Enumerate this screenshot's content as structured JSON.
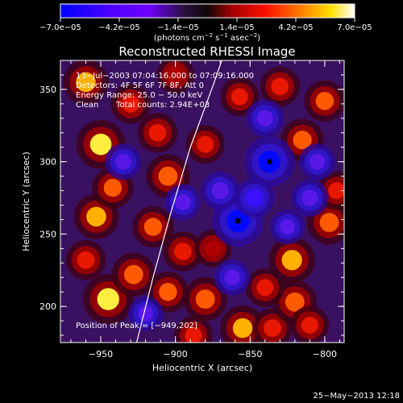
{
  "chart_data": {
    "type": "heatmap",
    "title": "Reconstructed RHESSI Image",
    "xlabel": "Heliocentric X (arcsec)",
    "ylabel": "Heliocentric Y (arcsec)",
    "xlim": [
      -977,
      -787
    ],
    "ylim": [
      175,
      370
    ],
    "x_ticks": [
      -950,
      -900,
      -850,
      -800
    ],
    "y_ticks": [
      200,
      250,
      300,
      350
    ],
    "x_tick_labels": [
      "−950",
      "−900",
      "−850",
      "−800"
    ],
    "y_tick_labels": [
      "200",
      "250",
      "300",
      "350"
    ],
    "colorbar": {
      "range": [
        -7e-05,
        7e-05
      ],
      "tick_values": [
        -7e-05,
        -4.2e-05,
        -1.4e-05,
        1.4e-05,
        4.2e-05,
        7e-05
      ],
      "tick_labels": [
        "−7.0e−05",
        "−4.2e−05",
        "−1.4e−05",
        "1.4e−05",
        "4.2e−05",
        "7.0e−05"
      ],
      "units_text": "(photons cm",
      "units_sup1": "−2",
      "units_mid": " s",
      "units_sup2": "−1",
      "units_end": " asec",
      "units_sup3": "−2",
      "units_close": ")",
      "colors": [
        "#0000ff",
        "#4000d8",
        "#7000ff",
        "#30102a",
        "#b00000",
        "#ff1000",
        "#ff8000",
        "#ffe000",
        "#ffffff"
      ]
    },
    "annotations": {
      "time": "13−Jul−2003 07:04:16.000 to 07:09:16.000",
      "detectors": "Detectors: 4F 5F 6F 7F 8F, Att 0",
      "energy": "Energy Range: 25.0 − 50.0 keV",
      "method": "Clean",
      "counts": "Total counts: 2.94E+03",
      "peak": "Position of Peak = [−949,202]"
    },
    "peak_position": [
      -949,
      202
    ],
    "markers": [
      [
        -858,
        259
      ],
      [
        -837,
        300
      ]
    ],
    "limb_curve": [
      [
        -926,
        175
      ],
      [
        -915,
        220
      ],
      [
        -903,
        265
      ],
      [
        -890,
        310
      ],
      [
        -874,
        355
      ],
      [
        -869,
        370
      ]
    ],
    "blobs": [
      [
        -945,
        205,
        0.95
      ],
      [
        -928,
        222,
        0.7
      ],
      [
        -953,
        262,
        0.75
      ],
      [
        -942,
        282,
        0.6
      ],
      [
        -950,
        312,
        0.9
      ],
      [
        -960,
        355,
        0.75
      ],
      [
        -930,
        340,
        0.55
      ],
      [
        -912,
        320,
        0.55
      ],
      [
        -905,
        290,
        0.7
      ],
      [
        -880,
        312,
        0.5
      ],
      [
        -915,
        255,
        0.6
      ],
      [
        -895,
        238,
        0.55
      ],
      [
        -905,
        210,
        0.6
      ],
      [
        -880,
        205,
        0.7
      ],
      [
        -855,
        185,
        0.75
      ],
      [
        -835,
        185,
        0.55
      ],
      [
        -820,
        203,
        0.7
      ],
      [
        -840,
        213,
        0.5
      ],
      [
        -822,
        232,
        0.8
      ],
      [
        -797,
        258,
        0.7
      ],
      [
        -792,
        280,
        0.5
      ],
      [
        -815,
        315,
        0.65
      ],
      [
        -800,
        342,
        0.6
      ],
      [
        -830,
        352,
        0.55
      ],
      [
        -857,
        345,
        0.5
      ],
      [
        -900,
        360,
        0.45
      ],
      [
        -960,
        232,
        0.55
      ],
      [
        -888,
        180,
        0.5
      ],
      [
        -875,
        240,
        0.45
      ],
      [
        -810,
        187,
        0.5
      ],
      [
        -858,
        259,
        -1.0
      ],
      [
        -837,
        300,
        -0.95
      ],
      [
        -847,
        275,
        -0.55
      ],
      [
        -840,
        330,
        -0.45
      ],
      [
        -870,
        280,
        -0.5
      ],
      [
        -895,
        272,
        -0.4
      ],
      [
        -935,
        300,
        -0.4
      ],
      [
        -920,
        195,
        -0.35
      ],
      [
        -810,
        275,
        -0.45
      ],
      [
        -825,
        255,
        -0.35
      ],
      [
        -805,
        300,
        -0.4
      ],
      [
        -862,
        220,
        -0.4
      ]
    ]
  },
  "footer_timestamp": "25−May−2013 12:18"
}
